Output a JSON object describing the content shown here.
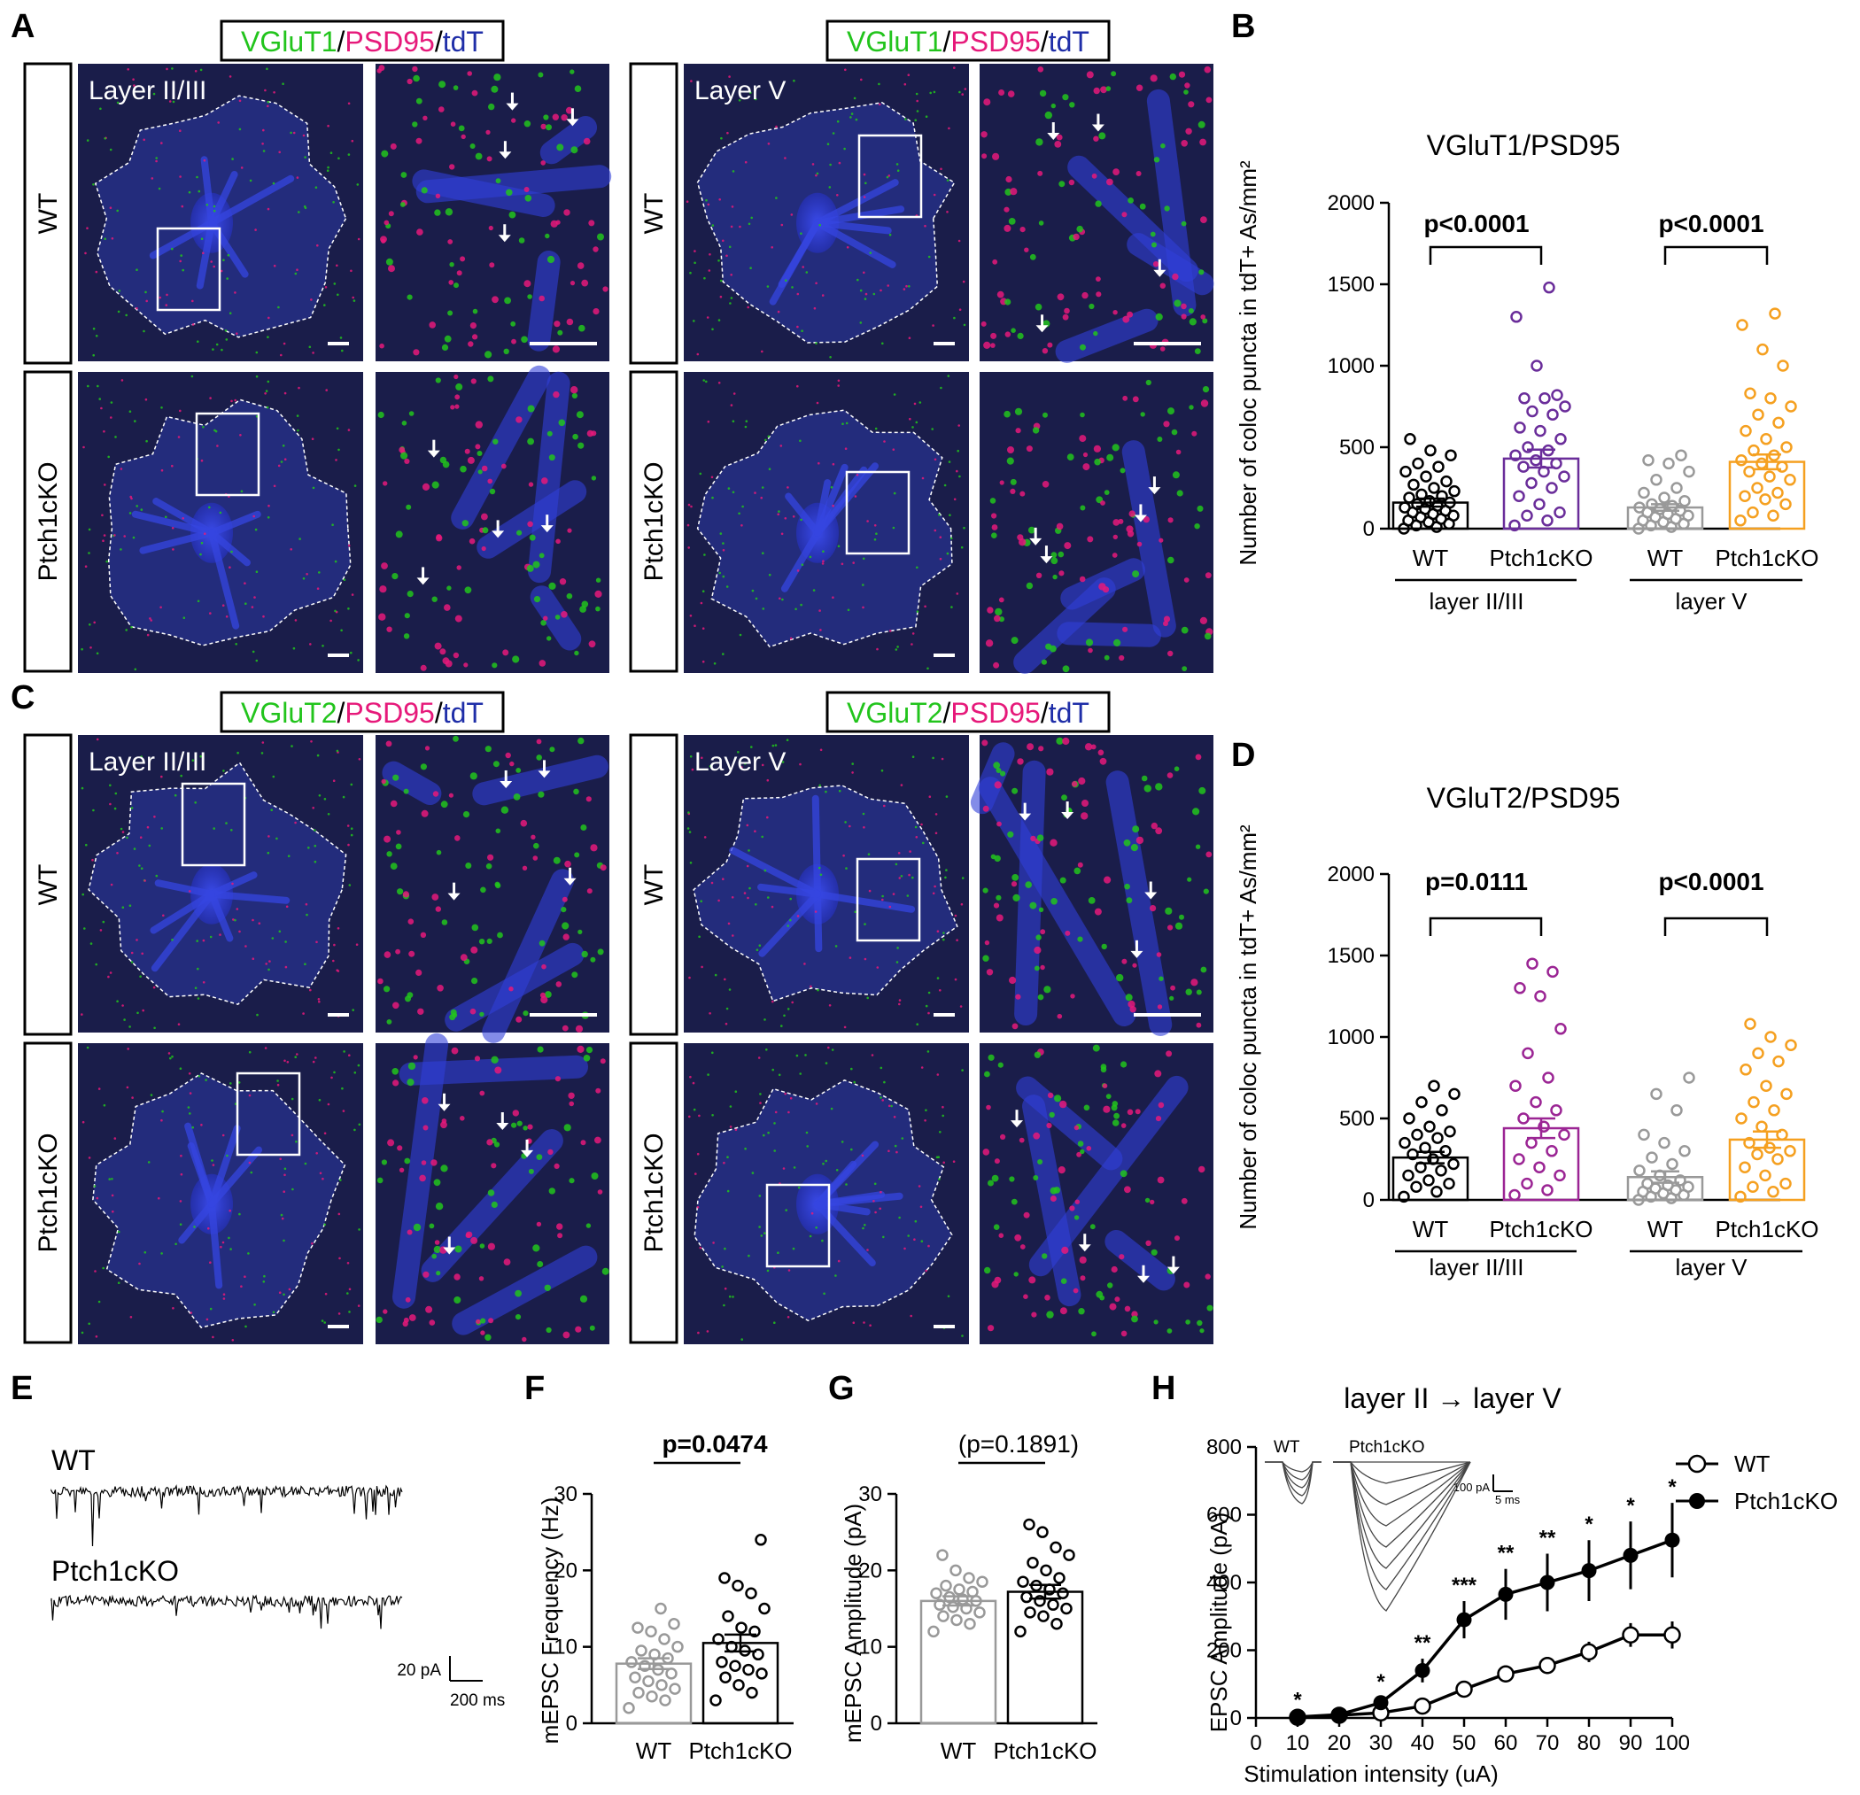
{
  "panel_letters": [
    "A",
    "B",
    "C",
    "D",
    "E",
    "F",
    "G",
    "H"
  ],
  "panel_A": {
    "stain": {
      "p1": "VGluT1",
      "sep1": "/",
      "p2": "PSD95",
      "sep2": "/",
      "p3": "tdT"
    },
    "region_left": "Layer II/III",
    "region_right": "Layer V",
    "genotypes": [
      "WT",
      "Ptch1cKO"
    ]
  },
  "panel_C": {
    "stain": {
      "p1": "VGluT2",
      "sep1": "/",
      "p2": "PSD95",
      "sep2": "/",
      "p3": "tdT"
    },
    "region_left": "Layer II/III",
    "region_right": "Layer V",
    "genotypes": [
      "WT",
      "Ptch1cKO"
    ]
  },
  "colors": {
    "green": "#22c41c",
    "magenta": "#e6197a",
    "blue": "#1f2ea8",
    "image_bg": "#1a1d4a",
    "wt": "#000000",
    "wt_grey": "#999999",
    "ko_purple": "#6a2d9a",
    "ko_magenta": "#9b2594",
    "ko_orange": "#f5a020"
  },
  "panel_E": {
    "labels": [
      "WT",
      "Ptch1cKO"
    ],
    "scale_y": "20 pA",
    "scale_x": "200 ms"
  },
  "panel_H_inset": {
    "labels": [
      "WT",
      "Ptch1cKO"
    ],
    "scale_y": "100 pA",
    "scale_x": "5 ms"
  },
  "chart_data": [
    {
      "panel": "B",
      "type": "bar",
      "title": "VGluT1/PSD95",
      "ylabel": "Number of coloc puncta in tdT+ As/mm²",
      "ylim": [
        0,
        2000
      ],
      "yticks": [
        "0",
        "500",
        "1000",
        "1500",
        "2000"
      ],
      "categories": [
        "WT",
        "Ptch1cKO",
        "WT",
        "Ptch1cKO"
      ],
      "groups": [
        "layer II/III",
        "layer V"
      ],
      "values": [
        160,
        430,
        130,
        410
      ],
      "sem": [
        25,
        55,
        20,
        45
      ],
      "pvalues": [
        "p<0.0001",
        "p<0.0001"
      ],
      "points": [
        [
          0,
          10,
          20,
          30,
          40,
          50,
          60,
          70,
          80,
          90,
          100,
          110,
          120,
          130,
          140,
          150,
          160,
          170,
          190,
          200,
          210,
          230,
          250,
          270,
          290,
          320,
          350,
          380,
          400,
          450,
          480,
          550
        ],
        [
          20,
          50,
          80,
          100,
          150,
          200,
          250,
          280,
          320,
          350,
          380,
          400,
          420,
          450,
          480,
          500,
          550,
          600,
          620,
          700,
          720,
          750,
          800,
          800,
          820,
          1000,
          1300,
          1480
        ],
        [
          0,
          10,
          20,
          30,
          40,
          50,
          60,
          70,
          80,
          90,
          100,
          110,
          120,
          130,
          140,
          150,
          170,
          190,
          220,
          250,
          300,
          350,
          400,
          420,
          450
        ],
        [
          50,
          80,
          100,
          150,
          180,
          200,
          220,
          250,
          300,
          320,
          350,
          380,
          400,
          420,
          450,
          480,
          500,
          550,
          600,
          650,
          700,
          750,
          800,
          830,
          1000,
          1100,
          1250,
          1320
        ]
      ]
    },
    {
      "panel": "D",
      "type": "bar",
      "title": "VGluT2/PSD95",
      "ylabel": "Number of coloc puncta in tdT+ As/mm²",
      "ylim": [
        0,
        2000
      ],
      "yticks": [
        "0",
        "500",
        "1000",
        "1500",
        "2000"
      ],
      "categories": [
        "WT",
        "Ptch1cKO",
        "WT",
        "Ptch1cKO"
      ],
      "groups": [
        "layer II/III",
        "layer V"
      ],
      "values": [
        260,
        440,
        140,
        370
      ],
      "sem": [
        35,
        60,
        35,
        50
      ],
      "pvalues": [
        "p=0.0111",
        "p<0.0001"
      ],
      "points": [
        [
          20,
          50,
          80,
          100,
          120,
          150,
          180,
          200,
          220,
          250,
          280,
          300,
          320,
          350,
          380,
          400,
          420,
          450,
          500,
          550,
          600,
          650,
          700
        ],
        [
          30,
          60,
          100,
          150,
          200,
          250,
          300,
          350,
          400,
          450,
          500,
          550,
          600,
          700,
          750,
          900,
          1050,
          1250,
          1300,
          1400,
          1450
        ],
        [
          0,
          10,
          20,
          30,
          40,
          50,
          60,
          70,
          80,
          90,
          100,
          120,
          150,
          180,
          220,
          260,
          300,
          350,
          400,
          550,
          650,
          750
        ],
        [
          20,
          50,
          80,
          100,
          150,
          200,
          250,
          280,
          300,
          320,
          350,
          400,
          450,
          500,
          550,
          600,
          650,
          700,
          800,
          850,
          900,
          950,
          1000,
          1080
        ]
      ]
    },
    {
      "panel": "F",
      "type": "bar",
      "ylabel": "mEPSC Frequency (Hz)",
      "ylim": [
        0,
        30
      ],
      "yticks": [
        "0",
        "10",
        "20",
        "30"
      ],
      "categories": [
        "WT",
        "Ptch1cKO"
      ],
      "values": [
        7.8,
        10.5
      ],
      "sem": [
        0.7,
        1.1
      ],
      "pvalue": "p=0.0474",
      "points": [
        [
          2,
          3,
          3.5,
          4,
          4.5,
          5,
          5.5,
          6,
          6.5,
          7,
          7.5,
          8,
          8.5,
          9,
          9.5,
          10,
          11,
          12,
          12.5,
          13,
          15
        ],
        [
          3,
          4,
          5,
          6,
          6.5,
          7,
          7.5,
          8,
          9,
          9.5,
          10,
          11,
          12,
          12.5,
          14,
          15,
          17,
          18,
          19,
          24
        ]
      ]
    },
    {
      "panel": "G",
      "type": "bar",
      "ylabel": "mEPSC Amplitude (pA)",
      "ylim": [
        0,
        30
      ],
      "yticks": [
        "0",
        "10",
        "20",
        "30"
      ],
      "categories": [
        "WT",
        "Ptch1cKO"
      ],
      "values": [
        16,
        17.2
      ],
      "sem": [
        0.6,
        0.9
      ],
      "pvalue": "(p=0.1891)",
      "points": [
        [
          12,
          13,
          13.5,
          14,
          14.5,
          15,
          15.2,
          15.5,
          16,
          16.2,
          16.5,
          17,
          17.2,
          17.5,
          18,
          18.5,
          19,
          20,
          22
        ],
        [
          12,
          13,
          14,
          14.5,
          15,
          15.5,
          16,
          16.5,
          17,
          17.5,
          18,
          18.5,
          19,
          20,
          21,
          22,
          23,
          25,
          26
        ]
      ]
    },
    {
      "panel": "H",
      "type": "line",
      "title": "layer II → layer V",
      "xlabel": "Stimulation intensity (uA)",
      "ylabel": "EPSC Amplitude (pA)",
      "xlim": [
        0,
        100
      ],
      "ylim": [
        0,
        800
      ],
      "x": [
        10,
        20,
        30,
        40,
        50,
        60,
        70,
        80,
        90,
        100
      ],
      "xticks": [
        "0",
        "10",
        "20",
        "30",
        "40",
        "50",
        "60",
        "70",
        "80",
        "90",
        "100"
      ],
      "yticks": [
        "0",
        "200",
        "400",
        "600",
        "800"
      ],
      "series": [
        {
          "name": "WT",
          "values": [
            2,
            8,
            15,
            35,
            85,
            130,
            155,
            195,
            245,
            245
          ],
          "sem": [
            2,
            4,
            6,
            10,
            15,
            25,
            25,
            30,
            35,
            40
          ]
        },
        {
          "name": "Ptch1cKO",
          "values": [
            3,
            10,
            45,
            140,
            290,
            365,
            400,
            435,
            480,
            525
          ],
          "sem": [
            3,
            5,
            15,
            35,
            55,
            75,
            85,
            90,
            100,
            110
          ]
        }
      ],
      "significance": [
        "*",
        "",
        "*",
        "**",
        "***",
        "**",
        "**",
        "*",
        "*",
        "*"
      ]
    }
  ]
}
